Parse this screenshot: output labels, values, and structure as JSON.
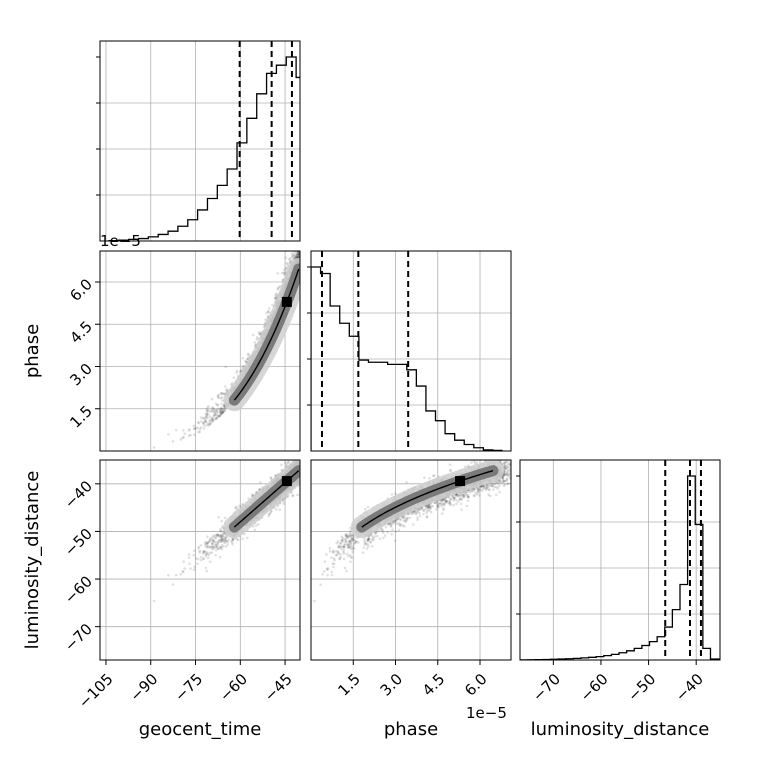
{
  "chart_data": {
    "type": "corner",
    "parameters": [
      {
        "name": "geocent_time",
        "label": "geocent_time",
        "range": [
          -107,
          -40
        ]
      },
      {
        "name": "phase",
        "label": "phase",
        "range": [
          0,
          7.1e-05
        ],
        "offset_label": "1e−5"
      },
      {
        "name": "luminosity_distance",
        "label": "luminosity_distance",
        "range": [
          -77,
          -35
        ]
      }
    ],
    "ticks": {
      "geocent_time": {
        "values": [
          -105,
          -90,
          -75,
          -60,
          -45
        ],
        "labels": [
          "−105",
          "−90",
          "−75",
          "−60",
          "−45"
        ]
      },
      "phase": {
        "values": [
          1.5e-05,
          3e-05,
          4.5e-05,
          6e-05
        ],
        "labels": [
          "1.5",
          "3.0",
          "4.5",
          "6.0"
        ]
      },
      "luminosity_distance": {
        "values": [
          -70,
          -60,
          -50,
          -40
        ],
        "labels": [
          "−70",
          "−60",
          "−50",
          "−40"
        ]
      }
    },
    "offset_texts": [
      {
        "panel": "geocent_time-hist",
        "text": "1e−5"
      },
      {
        "panel": "phase-axis",
        "text": "1e−5"
      }
    ],
    "histograms": [
      {
        "param": "geocent_time",
        "bin_edges": [
          -104,
          -100.7,
          -97.4,
          -94.1,
          -90.8,
          -87.5,
          -84.2,
          -80.9,
          -77.6,
          -74.3,
          -71,
          -67.7,
          -64.4,
          -61.1,
          -57.8,
          -54.5,
          -51.2,
          -47.9,
          -44.6,
          -41.3,
          -38
        ],
        "counts": [
          0.5,
          1,
          2,
          3,
          5,
          8,
          12,
          18,
          26,
          38,
          52,
          68,
          88,
          120,
          150,
          180,
          205,
          215,
          225,
          200
        ],
        "quantiles": [
          -60.2,
          -49.5,
          -42.7
        ]
      },
      {
        "param": "phase",
        "bin_edges": [
          0,
          3.4e-06,
          6.8e-06,
          1.02e-05,
          1.36e-05,
          1.7e-05,
          2.04e-05,
          2.38e-05,
          2.72e-05,
          3.06e-05,
          3.4e-05,
          3.74e-05,
          4.08e-05,
          4.42e-05,
          4.76e-05,
          5.1e-05,
          5.44e-05,
          5.78e-05,
          6.12e-05,
          6.46e-05,
          6.8e-05
        ],
        "counts": [
          170,
          164,
          134,
          118,
          106,
          84,
          82,
          82,
          80,
          80,
          75,
          60,
          37,
          28,
          16,
          10,
          6,
          3,
          1,
          0.5
        ],
        "quantiles": [
          3.9e-06,
          1.68e-05,
          3.45e-05
        ]
      },
      {
        "param": "luminosity_distance",
        "bin_edges": [
          -77,
          -75.4,
          -73.8,
          -72.2,
          -70.6,
          -69,
          -67.4,
          -65.8,
          -64.2,
          -62.6,
          -61,
          -59.4,
          -57.8,
          -56.2,
          -54.6,
          -53,
          -51.4,
          -49.8,
          -48.2,
          -46.6,
          -45,
          -43.4,
          -41.8,
          -40.2,
          -38.6,
          -37,
          -35
        ],
        "counts": [
          0.1,
          0.2,
          0.3,
          0.5,
          0.7,
          1,
          1.3,
          1.7,
          2.2,
          2.8,
          3.5,
          4.5,
          5.8,
          7.5,
          9.5,
          12,
          15,
          19,
          24,
          34,
          52,
          78,
          190,
          140,
          12,
          1
        ],
        "quantiles": [
          -46.5,
          -41.3,
          -39
        ]
      }
    ],
    "quantiles": [
      0.16,
      0.5,
      0.84
    ],
    "scatter_relations": [
      {
        "x": "geocent_time",
        "y": "phase",
        "relation": "phase increases steeply as geocent_time approaches -40"
      },
      {
        "x": "geocent_time",
        "y": "luminosity_distance",
        "relation": "approximately linear positive correlation"
      },
      {
        "x": "phase",
        "y": "luminosity_distance",
        "relation": "concave curve, steep rise near phase 0 then flattening near -38"
      }
    ],
    "grid": true,
    "colors": {
      "hist": "#000000",
      "points": "#555555",
      "contour_fill": "#7a7a7a"
    }
  }
}
